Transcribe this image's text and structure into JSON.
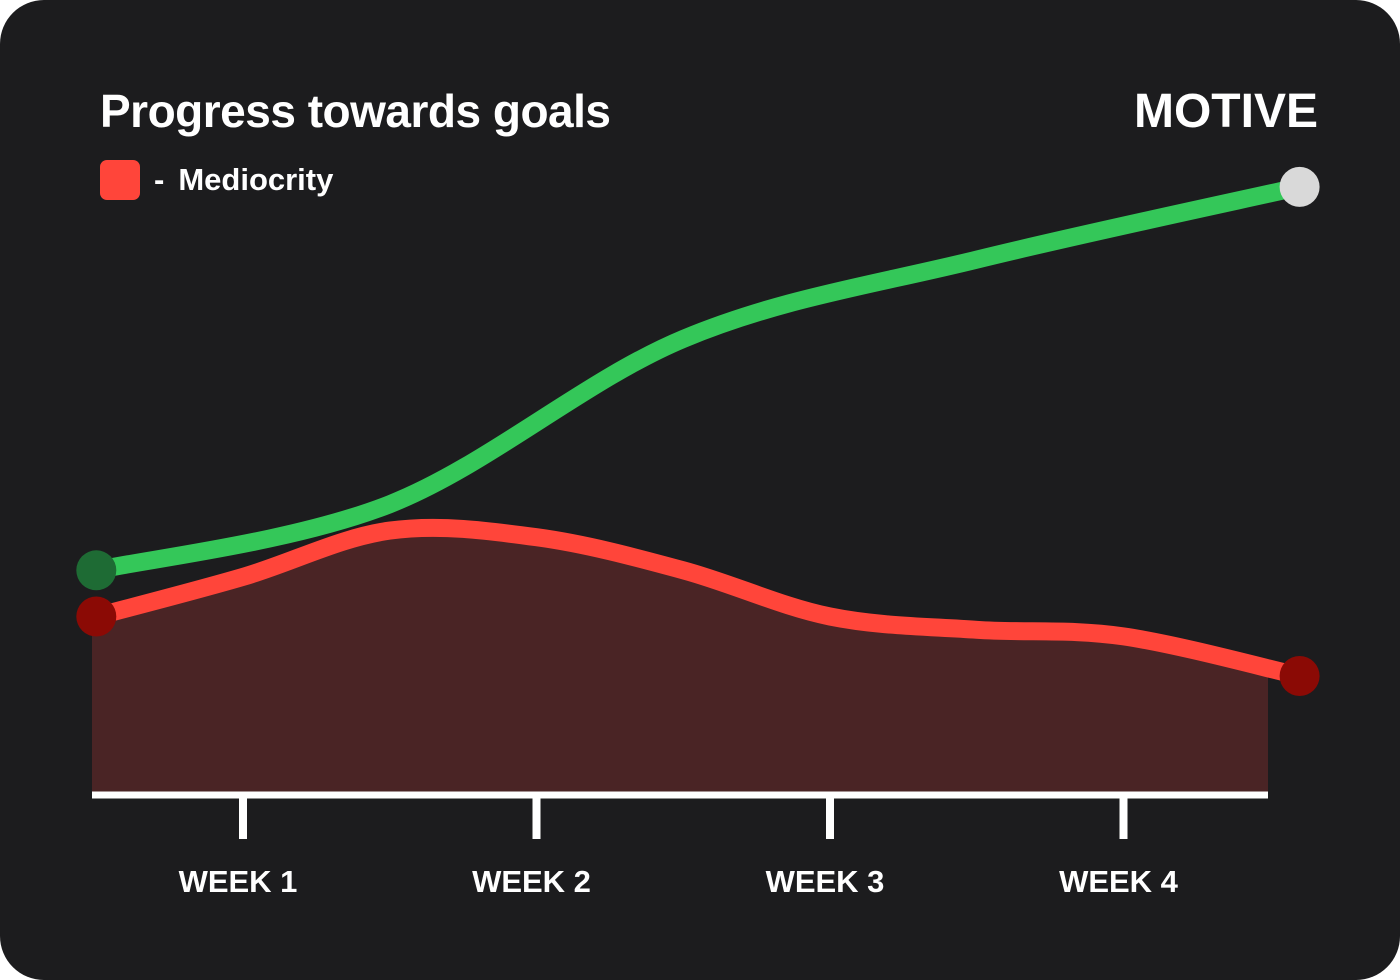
{
  "header": {
    "title": "Progress towards goals",
    "brand": "MOTIVE"
  },
  "legend": {
    "dash": "-",
    "label": "Mediocrity",
    "color": "#ff453a"
  },
  "colors": {
    "background": "#1c1c1e",
    "green_line": "#34c759",
    "green_start_marker": "#1e6b34",
    "green_end_marker": "#d9d9d9",
    "red_line": "#ff453a",
    "red_fill": "#4a2425",
    "red_marker": "#8b0a05",
    "axis": "#ffffff"
  },
  "chart_data": {
    "type": "line",
    "title": "Progress towards goals",
    "xlabel": "",
    "ylabel": "",
    "categories": [
      "WEEK 1",
      "WEEK 2",
      "WEEK 3",
      "WEEK 4"
    ],
    "ylim": [
      0,
      100
    ],
    "grid": false,
    "legend_position": "top-left",
    "series": [
      {
        "name": "Mediocrity",
        "color": "#ff453a",
        "filled": true,
        "x": [
          0.5,
          1.0,
          1.5,
          2.0,
          2.5,
          3.0,
          3.5,
          4.0,
          4.6
        ],
        "values": [
          27,
          33,
          40,
          39,
          34,
          27,
          25,
          24,
          18
        ]
      },
      {
        "name": "",
        "color": "#34c759",
        "filled": false,
        "x": [
          0.5,
          1.5,
          2.5,
          3.5,
          4.6
        ],
        "values": [
          34,
          44,
          69,
          81,
          92
        ]
      }
    ]
  }
}
